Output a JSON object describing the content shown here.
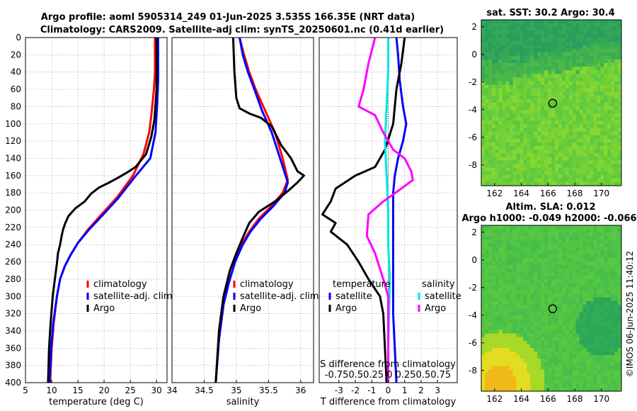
{
  "title_line1": "Argo profile: aoml 5905314_249 01-Jun-2025 3.535S 166.35E (NRT data)",
  "title_line2": "Climatology: CARS2009. Satellite-adj clim: synTS_20250601.nc (0.41d earlier)",
  "stamp": "©IMOS 06-Jun-2025 11:40:12",
  "colors": {
    "climatology": "#ff0000",
    "satellite": "#0000ff",
    "argo": "#000000",
    "t_sat": "#0000ff",
    "s_sat": "#00e5e5",
    "s_argo": "#ff00ff",
    "grid": "#b0b0b0"
  },
  "chart_data": [
    {
      "type": "line",
      "id": "temperature",
      "xlabel": "temperature (deg C)",
      "ylabel": "",
      "xlim": [
        5,
        32
      ],
      "ylim": [
        400,
        0
      ],
      "xticks": [
        5,
        10,
        15,
        20,
        25,
        30
      ],
      "yticks": [
        0,
        20,
        40,
        60,
        80,
        100,
        120,
        140,
        160,
        180,
        200,
        220,
        240,
        260,
        280,
        300,
        320,
        340,
        360,
        380,
        400
      ],
      "legend": [
        "climatology",
        "satellite-adj. clim",
        "Argo"
      ],
      "series": [
        {
          "name": "climatology",
          "color": "#ff0000",
          "points": [
            [
              29.7,
              0
            ],
            [
              29.7,
              40
            ],
            [
              29.5,
              60
            ],
            [
              29.0,
              90
            ],
            [
              28.6,
              110
            ],
            [
              27.5,
              135
            ],
            [
              25.5,
              160
            ],
            [
              22.5,
              185
            ],
            [
              19.5,
              205
            ],
            [
              17.0,
              222
            ],
            [
              15.0,
              238
            ],
            [
              13.6,
              252
            ],
            [
              12.5,
              265
            ],
            [
              11.6,
              280
            ],
            [
              11.0,
              300
            ],
            [
              10.4,
              330
            ],
            [
              10.0,
              360
            ],
            [
              9.7,
              400
            ]
          ]
        },
        {
          "name": "satellite-adj. clim",
          "color": "#0000ff",
          "points": [
            [
              30.3,
              0
            ],
            [
              30.3,
              50
            ],
            [
              30.1,
              80
            ],
            [
              29.8,
              110
            ],
            [
              28.8,
              140
            ],
            [
              25.8,
              162
            ],
            [
              22.7,
              186
            ],
            [
              19.7,
              206
            ],
            [
              17.2,
              222
            ],
            [
              15.0,
              238
            ],
            [
              13.6,
              252
            ],
            [
              12.5,
              265
            ],
            [
              11.6,
              280
            ],
            [
              11.0,
              300
            ],
            [
              10.3,
              330
            ],
            [
              9.9,
              360
            ],
            [
              9.6,
              400
            ]
          ]
        },
        {
          "name": "Argo",
          "color": "#000000",
          "points": [
            [
              30.0,
              0
            ],
            [
              30.0,
              60
            ],
            [
              29.6,
              95
            ],
            [
              29.0,
              115
            ],
            [
              28.0,
              135
            ],
            [
              26.0,
              150
            ],
            [
              24.5,
              156
            ],
            [
              22.8,
              162
            ],
            [
              21.0,
              168
            ],
            [
              19.0,
              174
            ],
            [
              17.5,
              181
            ],
            [
              16.3,
              190
            ],
            [
              14.5,
              198
            ],
            [
              13.2,
              207
            ],
            [
              12.6,
              215
            ],
            [
              12.2,
              222
            ],
            [
              11.9,
              230
            ],
            [
              11.6,
              240
            ],
            [
              11.2,
              250
            ],
            [
              11.0,
              262
            ],
            [
              10.6,
              280
            ],
            [
              10.2,
              300
            ],
            [
              9.8,
              330
            ],
            [
              9.5,
              360
            ],
            [
              9.3,
              400
            ]
          ]
        }
      ]
    },
    {
      "type": "line",
      "id": "salinity",
      "xlabel": "salinity",
      "xlim": [
        34,
        36.2
      ],
      "ylim": [
        400,
        0
      ],
      "xticks": [
        34,
        34.5,
        35,
        35.5,
        36
      ],
      "legend": [
        "climatology",
        "satellite-adj. clim",
        "Argo"
      ],
      "series": [
        {
          "name": "climatology",
          "color": "#ff0000",
          "points": [
            [
              35.05,
              0
            ],
            [
              35.12,
              20
            ],
            [
              35.2,
              40
            ],
            [
              35.3,
              60
            ],
            [
              35.45,
              85
            ],
            [
              35.6,
              110
            ],
            [
              35.72,
              140
            ],
            [
              35.8,
              165
            ],
            [
              35.72,
              180
            ],
            [
              35.55,
              195
            ],
            [
              35.35,
              210
            ],
            [
              35.2,
              225
            ],
            [
              35.08,
              240
            ],
            [
              34.98,
              260
            ],
            [
              34.88,
              285
            ],
            [
              34.8,
              310
            ],
            [
              34.73,
              350
            ],
            [
              34.68,
              400
            ]
          ]
        },
        {
          "name": "satellite-adj. clim",
          "color": "#0000ff",
          "points": [
            [
              35.05,
              0
            ],
            [
              35.1,
              20
            ],
            [
              35.18,
              40
            ],
            [
              35.28,
              60
            ],
            [
              35.4,
              85
            ],
            [
              35.55,
              110
            ],
            [
              35.68,
              140
            ],
            [
              35.8,
              168
            ],
            [
              35.75,
              180
            ],
            [
              35.58,
              195
            ],
            [
              35.38,
              210
            ],
            [
              35.22,
              225
            ],
            [
              35.1,
              240
            ],
            [
              34.98,
              260
            ],
            [
              34.88,
              285
            ],
            [
              34.8,
              310
            ],
            [
              34.73,
              350
            ],
            [
              34.68,
              400
            ]
          ]
        },
        {
          "name": "Argo",
          "color": "#000000",
          "points": [
            [
              34.95,
              0
            ],
            [
              34.97,
              40
            ],
            [
              35.0,
              70
            ],
            [
              35.05,
              82
            ],
            [
              35.2,
              88
            ],
            [
              35.38,
              93
            ],
            [
              35.55,
              103
            ],
            [
              35.7,
              125
            ],
            [
              35.85,
              140
            ],
            [
              35.95,
              155
            ],
            [
              36.05,
              160
            ],
            [
              35.95,
              168
            ],
            [
              35.8,
              178
            ],
            [
              35.6,
              190
            ],
            [
              35.35,
              202
            ],
            [
              35.2,
              215
            ],
            [
              35.1,
              232
            ],
            [
              35.0,
              250
            ],
            [
              34.9,
              270
            ],
            [
              34.8,
              300
            ],
            [
              34.73,
              340
            ],
            [
              34.68,
              400
            ]
          ]
        }
      ]
    },
    {
      "type": "line",
      "id": "difference",
      "xlabel": "T difference from climatology",
      "x2label": "S difference from climatology",
      "xlim": [
        -4.2,
        4.2
      ],
      "ylim": [
        400,
        0
      ],
      "xticks": [
        -3,
        -2,
        -1,
        0,
        1,
        2,
        3
      ],
      "x2ticks_text": "-0.750.50.25 0  0.250.50.75",
      "legend_temperature_title": "temperature",
      "legend_salinity_title": "salinity",
      "legend": {
        "t_satellite": "satellite",
        "t_argo": "Argo",
        "s_satellite": "satellite",
        "s_argo": "Argo"
      },
      "series": [
        {
          "name": "T satellite",
          "color": "#0000ff",
          "points": [
            [
              0.5,
              0
            ],
            [
              0.6,
              20
            ],
            [
              0.7,
              50
            ],
            [
              0.9,
              80
            ],
            [
              1.1,
              100
            ],
            [
              0.9,
              120
            ],
            [
              0.6,
              140
            ],
            [
              0.4,
              160
            ],
            [
              0.3,
              180
            ],
            [
              0.3,
              200
            ],
            [
              0.3,
              240
            ],
            [
              0.3,
              280
            ],
            [
              0.3,
              320
            ],
            [
              0.4,
              360
            ],
            [
              0.5,
              400
            ]
          ]
        },
        {
          "name": "T Argo",
          "color": "#000000",
          "points": [
            [
              1.0,
              0
            ],
            [
              0.8,
              30
            ],
            [
              0.5,
              60
            ],
            [
              0.3,
              100
            ],
            [
              -0.2,
              130
            ],
            [
              -0.8,
              150
            ],
            [
              -2.0,
              160
            ],
            [
              -3.2,
              175
            ],
            [
              -3.5,
              190
            ],
            [
              -4.0,
              205
            ],
            [
              -3.2,
              215
            ],
            [
              -3.5,
              225
            ],
            [
              -2.5,
              240
            ],
            [
              -1.8,
              260
            ],
            [
              -1.2,
              280
            ],
            [
              -0.5,
              300
            ],
            [
              -0.3,
              320
            ],
            [
              -0.2,
              360
            ],
            [
              -0.1,
              400
            ]
          ]
        },
        {
          "name": "S satellite",
          "color": "#00e5e5",
          "points": [
            [
              0.0,
              0
            ],
            [
              0.0,
              40
            ],
            [
              -0.1,
              80
            ],
            [
              -0.2,
              120
            ],
            [
              -0.1,
              160
            ],
            [
              0.0,
              200
            ],
            [
              0.0,
              240
            ],
            [
              0.1,
              280
            ],
            [
              0.05,
              320
            ],
            [
              0.0,
              360
            ],
            [
              0.0,
              400
            ]
          ]
        },
        {
          "name": "S Argo",
          "color": "#ff00ff",
          "points": [
            [
              -0.8,
              0
            ],
            [
              -1.2,
              30
            ],
            [
              -1.5,
              60
            ],
            [
              -1.8,
              80
            ],
            [
              -0.8,
              90
            ],
            [
              -0.3,
              110
            ],
            [
              0.3,
              130
            ],
            [
              1.0,
              140
            ],
            [
              1.4,
              155
            ],
            [
              1.5,
              165
            ],
            [
              0.8,
              175
            ],
            [
              -0.3,
              190
            ],
            [
              -1.2,
              205
            ],
            [
              -1.3,
              230
            ],
            [
              -0.8,
              250
            ],
            [
              -0.3,
              280
            ],
            [
              0.0,
              300
            ],
            [
              0.0,
              400
            ]
          ]
        }
      ]
    },
    {
      "type": "heatmap",
      "id": "sst_map",
      "title": "sat. SST: 30.2 Argo: 30.4",
      "xlim": [
        161,
        171.5
      ],
      "ylim": [
        -9.5,
        2.5
      ],
      "xticks": [
        162,
        164,
        166,
        168,
        170
      ],
      "yticks": [
        2,
        0,
        -2,
        -4,
        -6,
        -8
      ],
      "argo_position": [
        166.35,
        -3.535
      ],
      "colors": [
        "#1f9e5a",
        "#3cb84a",
        "#5fd03a",
        "#8ad82a",
        "#6ccc3c"
      ]
    },
    {
      "type": "heatmap",
      "id": "sla_map",
      "title": "Altim. SLA: 0.012",
      "subtitle": "Argo h1000: -0.049 h2000: -0.066",
      "xlim": [
        161,
        171.5
      ],
      "ylim": [
        -9.5,
        2.5
      ],
      "xticks": [
        162,
        164,
        166,
        168,
        170
      ],
      "yticks": [
        2,
        0,
        -2,
        -4,
        -6,
        -8
      ],
      "argo_position": [
        166.35,
        -3.535
      ],
      "colors": [
        "#3cc04a",
        "#2fb050",
        "#55c840",
        "#9ad82a",
        "#e8e020",
        "#f0b010"
      ]
    }
  ]
}
